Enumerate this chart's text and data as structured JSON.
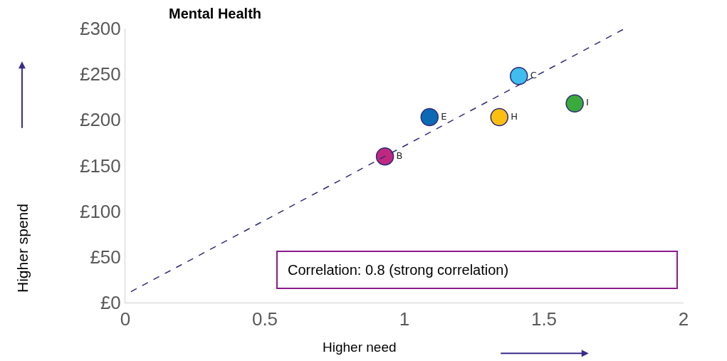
{
  "chart_data": {
    "type": "scatter",
    "title": "Mental Health",
    "xlabel": "Higher need",
    "ylabel": "Higher spend",
    "xlim": [
      0,
      2
    ],
    "xticks": [
      0,
      0.5,
      1,
      1.5,
      2
    ],
    "ylim": [
      0,
      300
    ],
    "yticks": [
      {
        "value": 0,
        "label": "£0"
      },
      {
        "value": 50,
        "label": "£50"
      },
      {
        "value": 100,
        "label": "£100"
      },
      {
        "value": 150,
        "label": "£150"
      },
      {
        "value": 200,
        "label": "£200"
      },
      {
        "value": 250,
        "label": "£250"
      },
      {
        "value": 300,
        "label": "£300"
      }
    ],
    "series": [
      {
        "name": "B",
        "color": "#c0287f",
        "x": [
          0.93
        ],
        "values": [
          160
        ]
      },
      {
        "name": "E",
        "color": "#0b6ab5",
        "x": [
          1.09
        ],
        "values": [
          203
        ]
      },
      {
        "name": "C",
        "color": "#3ebdee",
        "x": [
          1.41
        ],
        "values": [
          248
        ]
      },
      {
        "name": "H",
        "color": "#fcbf10",
        "x": [
          1.34
        ],
        "values": [
          203
        ]
      },
      {
        "name": "I",
        "color": "#3aaa3a",
        "x": [
          1.61
        ],
        "values": [
          218
        ]
      },
      {
        "type": "line",
        "color": "#2e2a7a",
        "line_style": "dashed",
        "marker": "none",
        "x": [
          0.02,
          1.79
        ],
        "values": [
          12,
          300
        ]
      }
    ],
    "annotations": [
      "Correlation: 0.8 (strong correlation)"
    ],
    "marker": "circle"
  }
}
